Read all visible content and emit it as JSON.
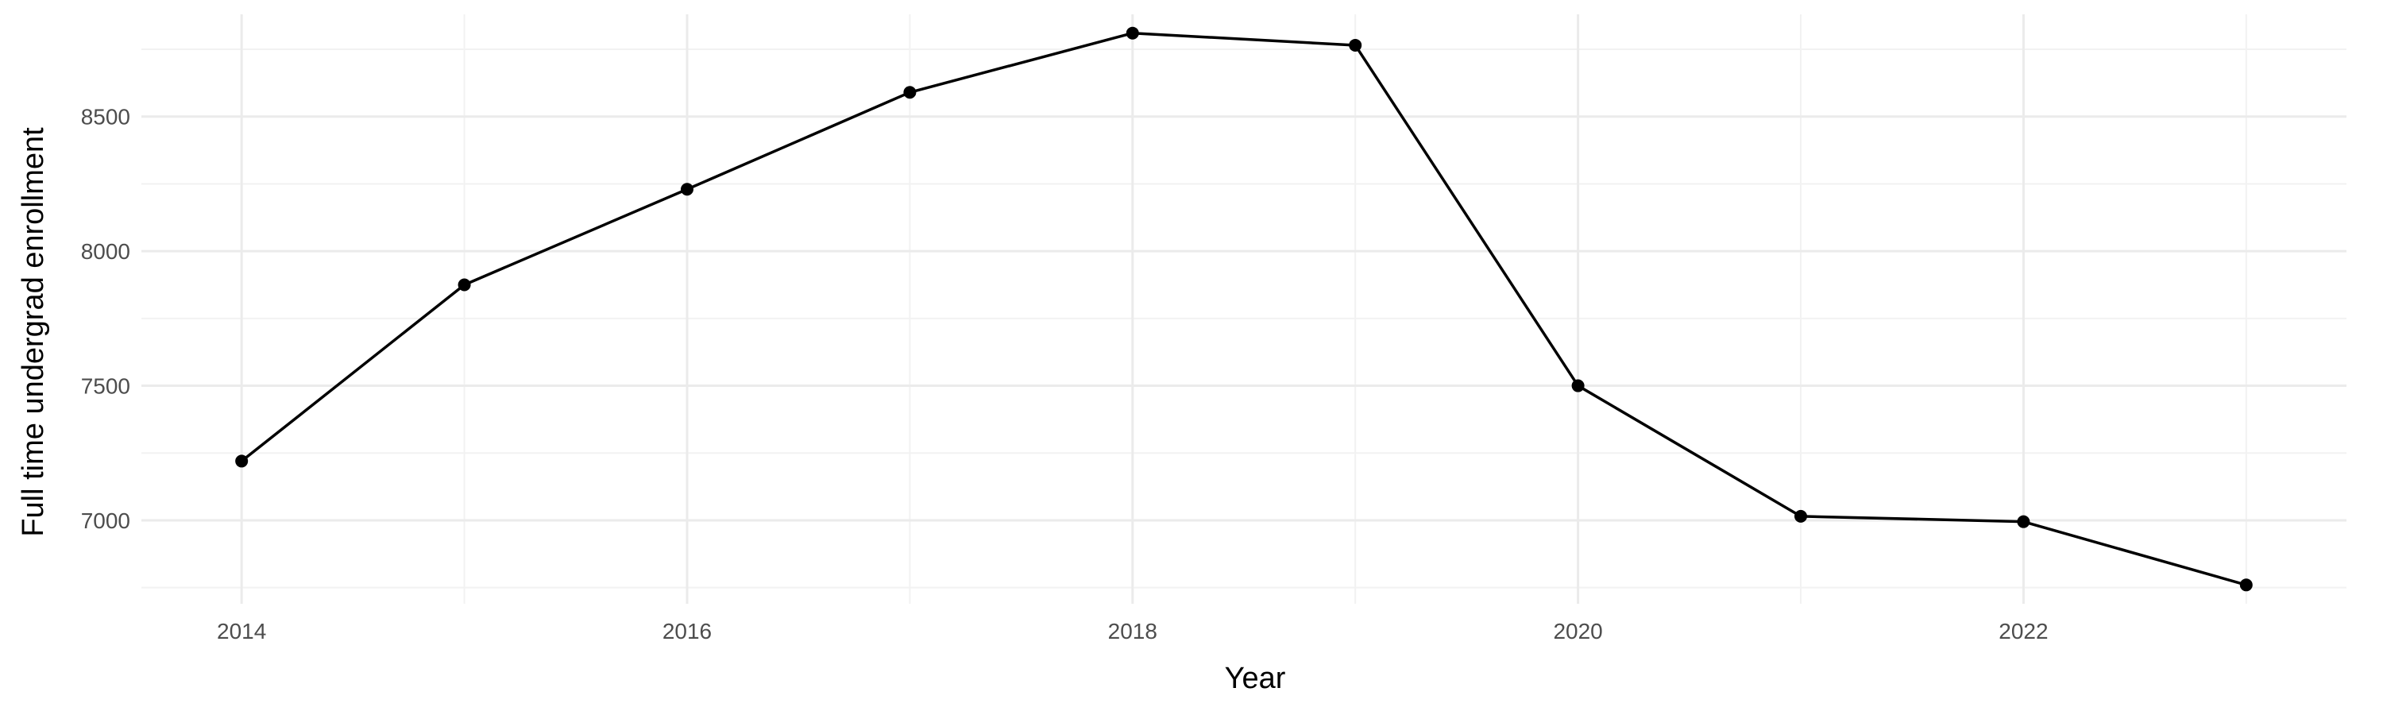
{
  "chart_data": {
    "type": "line",
    "xlabel": "Year",
    "ylabel": "Full time undergrad enrollment",
    "x": [
      2014,
      2015,
      2016,
      2017,
      2018,
      2019,
      2020,
      2021,
      2022,
      2023
    ],
    "series": [
      {
        "values": [
          7220,
          7875,
          8230,
          8590,
          8810,
          8765,
          7500,
          7015,
          6995,
          6760
        ]
      }
    ],
    "xlim": [
      2013.55,
      2023.45
    ],
    "ylim": [
      6690,
      8880
    ],
    "x_ticks": [
      2014,
      2016,
      2018,
      2020,
      2022
    ],
    "x_tick_labels": [
      "2014",
      "2016",
      "2018",
      "2020",
      "2022"
    ],
    "y_ticks": [
      7000,
      7500,
      8000,
      8500
    ],
    "y_tick_labels": [
      "7000",
      "7500",
      "8000",
      "8500"
    ],
    "grid": true,
    "line_color": "#000000",
    "point_color": "#000000",
    "grid_color": "#ebebeb"
  }
}
